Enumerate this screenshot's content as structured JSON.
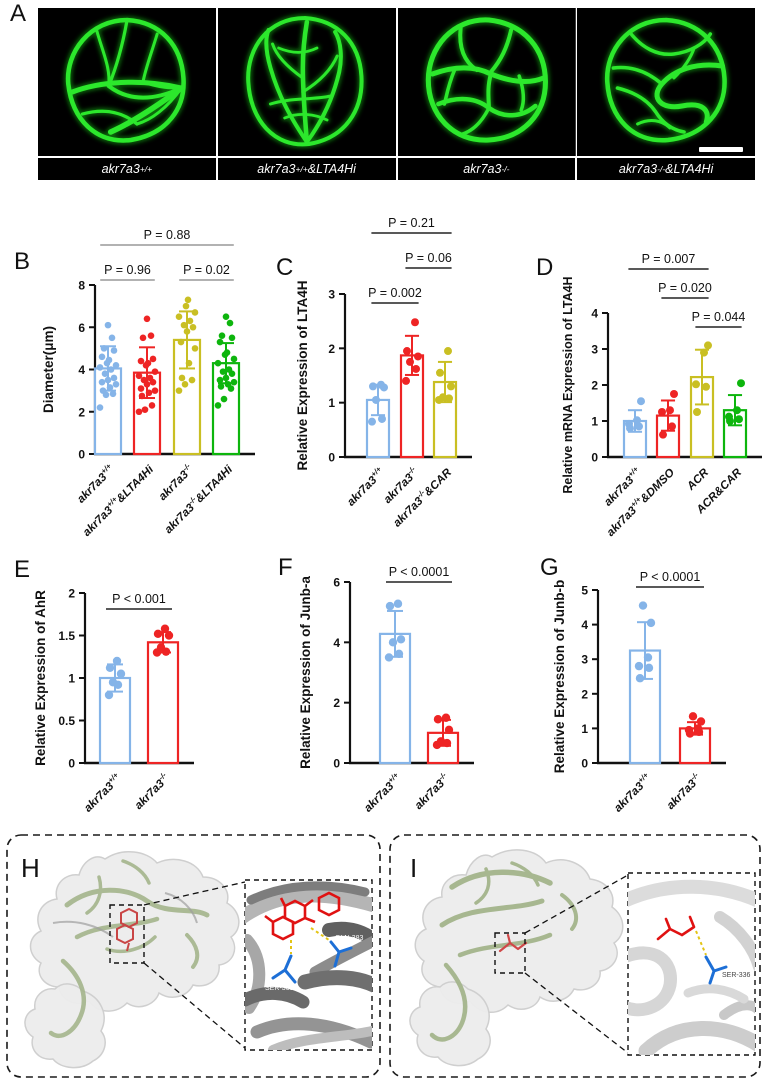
{
  "figure_type": "multi-panel scientific figure",
  "panels": {
    "A": {
      "letter": "A",
      "images": [
        {
          "label": "akr7a3^{+/+}"
        },
        {
          "label": "akr7a3^{+/+}&LTA4Hi"
        },
        {
          "label": "akr7a3^{-/-}"
        },
        {
          "label": "akr7a3^{-/-}&LTA4Hi"
        }
      ]
    },
    "B": {
      "letter": "B"
    },
    "C": {
      "letter": "C"
    },
    "D": {
      "letter": "D"
    },
    "E": {
      "letter": "E"
    },
    "F": {
      "letter": "F"
    },
    "G": {
      "letter": "G"
    },
    "H": {
      "letter": "H",
      "residues": [
        "GLN-383",
        "SER-365"
      ]
    },
    "I": {
      "letter": "I",
      "residues": [
        "SER-336"
      ]
    }
  },
  "colors": {
    "group_blue": "#85b4e8",
    "group_red": "#ee2424",
    "group_yellow": "#c9bf23",
    "group_green": "#0db50d",
    "vessel_green": "#2ce82c"
  },
  "chart_data": [
    {
      "panel": "B",
      "type": "bar",
      "ylabel": "Diameter(μm)",
      "xlabel": "",
      "ylim": [
        0,
        8
      ],
      "yticks": [
        0,
        2,
        4,
        6,
        8
      ],
      "categories": [
        "akr7a3^{+/+}",
        "akr7a3^{+/+}&LTA4Hi",
        "akr7a3^{-/-}",
        "akr7a3^{-/-}&LTA4Hi"
      ],
      "bar_colors": [
        "#85b4e8",
        "#ee2424",
        "#c9bf23",
        "#0db50d"
      ],
      "means": [
        4.05,
        3.85,
        5.4,
        4.3
      ],
      "sd": [
        1.05,
        1.2,
        1.35,
        0.95
      ],
      "points": [
        [
          2.2,
          2.8,
          2.85,
          3.0,
          3.15,
          3.3,
          3.4,
          3.5,
          3.6,
          3.8,
          4.0,
          4.1,
          4.2,
          4.3,
          4.45,
          4.6,
          4.9,
          5.0,
          5.5,
          6.1
        ],
        [
          2.0,
          2.1,
          2.3,
          2.75,
          2.9,
          3.0,
          3.1,
          3.3,
          3.4,
          3.5,
          3.6,
          3.7,
          3.9,
          4.2,
          4.3,
          4.4,
          4.5,
          5.5,
          5.6,
          6.4
        ],
        [
          3.0,
          3.3,
          3.5,
          3.6,
          4.3,
          5.0,
          5.3,
          5.8,
          6.0,
          6.1,
          6.3,
          6.5,
          6.7,
          7.0,
          7.3
        ],
        [
          2.3,
          2.6,
          3.1,
          3.2,
          3.3,
          3.4,
          3.5,
          3.6,
          3.8,
          3.9,
          4.0,
          4.3,
          4.5,
          4.7,
          4.8,
          5.3,
          5.5,
          5.6,
          6.2,
          6.5
        ]
      ],
      "brackets": [
        {
          "from": 0,
          "to": 1,
          "label": "P = 0.96",
          "level": 0
        },
        {
          "from": 2,
          "to": 3,
          "label": "P = 0.02",
          "level": 0
        },
        {
          "from": 0,
          "to": 3,
          "label": "P = 0.88",
          "level": 1
        }
      ]
    },
    {
      "panel": "C",
      "type": "bar",
      "ylabel": "Relative Expression of LTA4H",
      "xlabel": "",
      "ylim": [
        0,
        3
      ],
      "yticks": [
        0,
        1,
        2,
        3
      ],
      "categories": [
        "akr7a3^{+/+}",
        "akr7a3^{-/-}",
        "akr7a3^{-/-}&CAR"
      ],
      "bar_colors": [
        "#85b4e8",
        "#ee2424",
        "#c9bf23"
      ],
      "means": [
        1.05,
        1.87,
        1.38
      ],
      "sd": [
        0.28,
        0.36,
        0.37
      ],
      "points": [
        [
          0.65,
          0.7,
          1.05,
          1.28,
          1.3,
          1.33
        ],
        [
          1.4,
          1.62,
          1.75,
          1.85,
          1.95,
          2.48
        ],
        [
          1.05,
          1.08,
          1.1,
          1.3,
          1.55,
          1.95
        ]
      ],
      "brackets": [
        {
          "from": 0,
          "to": 1,
          "label": "P = 0.002",
          "level": 0
        },
        {
          "from": 1,
          "to": 2,
          "label": "P = 0.06",
          "level": 1
        },
        {
          "from": 0,
          "to": 2,
          "label": "P = 0.21",
          "level": 2
        }
      ]
    },
    {
      "panel": "D",
      "type": "bar",
      "ylabel": "Relative mRNA Expression of LTA4H",
      "xlabel": "",
      "ylim": [
        0,
        4
      ],
      "yticks": [
        0,
        1,
        2,
        3,
        4
      ],
      "categories": [
        "akr7a3^{+/+}",
        "akr7a3^{+/+}&DMSO",
        "ACR",
        "ACR&CAR"
      ],
      "bar_colors": [
        "#85b4e8",
        "#ee2424",
        "#c9bf23",
        "#0db50d"
      ],
      "means": [
        1.0,
        1.15,
        2.22,
        1.3
      ],
      "sd": [
        0.3,
        0.42,
        0.76,
        0.42
      ],
      "points": [
        [
          0.8,
          0.85,
          0.92,
          1.02,
          1.55
        ],
        [
          0.62,
          0.85,
          1.25,
          1.3,
          1.75
        ],
        [
          1.25,
          1.95,
          2.02,
          2.9,
          3.1
        ],
        [
          1.0,
          1.05,
          1.12,
          1.3,
          2.05
        ]
      ],
      "brackets": [
        {
          "from": 2,
          "to": 3,
          "label": "P = 0.044",
          "level": 0
        },
        {
          "from": 1,
          "to": 2,
          "label": "P = 0.020",
          "level": 1
        },
        {
          "from": 0,
          "to": 2,
          "label": "P = 0.007",
          "level": 2
        }
      ]
    },
    {
      "panel": "E",
      "type": "bar",
      "ylabel": "Relative Expression of AhR",
      "xlabel": "",
      "ylim": [
        0,
        2
      ],
      "yticks": [
        0,
        0.5,
        1,
        1.5,
        2
      ],
      "categories": [
        "akr7a3^{+/+}",
        "akr7a3^{-/-}"
      ],
      "bar_colors": [
        "#85b4e8",
        "#ee2424"
      ],
      "means": [
        1.0,
        1.42
      ],
      "sd": [
        0.16,
        0.12
      ],
      "points": [
        [
          0.8,
          0.92,
          0.95,
          1.05,
          1.12,
          1.2
        ],
        [
          1.3,
          1.31,
          1.36,
          1.5,
          1.52,
          1.58
        ]
      ],
      "brackets": [
        {
          "from": 0,
          "to": 1,
          "label": "P < 0.001",
          "level": 0
        }
      ]
    },
    {
      "panel": "F",
      "type": "bar",
      "ylabel": "Relative Expression of Junb-a",
      "xlabel": "",
      "ylim": [
        0,
        6
      ],
      "yticks": [
        0,
        2,
        4,
        6
      ],
      "categories": [
        "akr7a3^{+/+}",
        "akr7a3^{-/-}"
      ],
      "bar_colors": [
        "#85b4e8",
        "#ee2424"
      ],
      "means": [
        4.28,
        1.0
      ],
      "sd": [
        0.76,
        0.43
      ],
      "points": [
        [
          3.5,
          3.62,
          4.0,
          4.1,
          5.2,
          5.28
        ],
        [
          0.6,
          0.66,
          0.72,
          1.1,
          1.45,
          1.5
        ]
      ],
      "brackets": [
        {
          "from": 0,
          "to": 1,
          "label": "P < 0.0001",
          "level": 0
        }
      ]
    },
    {
      "panel": "G",
      "type": "bar",
      "ylabel": "Relative Expression of Junb-b",
      "xlabel": "",
      "ylim": [
        0,
        5
      ],
      "yticks": [
        0,
        1,
        2,
        3,
        4,
        5
      ],
      "categories": [
        "akr7a3^{+/+}",
        "akr7a3^{-/-}"
      ],
      "bar_colors": [
        "#85b4e8",
        "#ee2424"
      ],
      "means": [
        3.25,
        1.0
      ],
      "sd": [
        0.82,
        0.18
      ],
      "points": [
        [
          2.45,
          2.75,
          2.8,
          3.05,
          4.05,
          4.55
        ],
        [
          0.85,
          0.9,
          0.95,
          1.0,
          1.2,
          1.35
        ]
      ],
      "brackets": [
        {
          "from": 0,
          "to": 1,
          "label": "P < 0.0001",
          "level": 0
        }
      ]
    }
  ]
}
